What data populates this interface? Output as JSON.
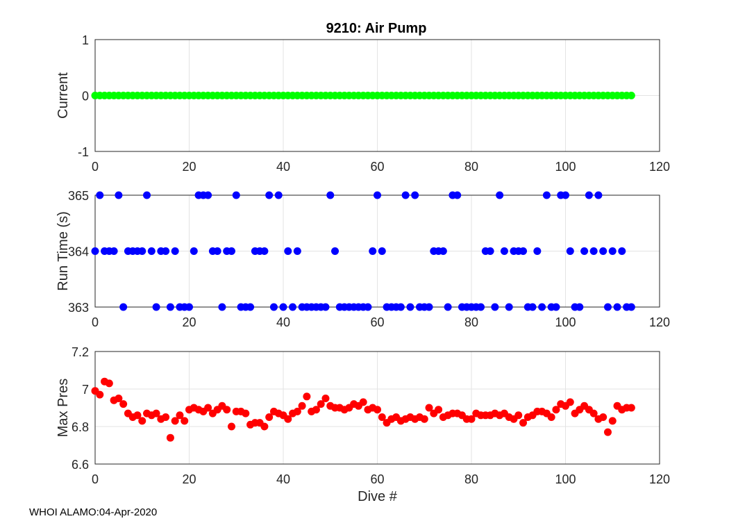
{
  "title": "9210: Air Pump",
  "footer": "WHOI ALAMO:04-Apr-2020",
  "chart_data": [
    {
      "type": "scatter",
      "title": "9210: Air Pump",
      "ylabel": "Current",
      "xlabel": "",
      "xlim": [
        0,
        120
      ],
      "ylim": [
        -1,
        1
      ],
      "xticks": [
        0,
        20,
        40,
        60,
        80,
        100,
        120
      ],
      "yticks": [
        -1,
        0,
        1
      ],
      "grid": true,
      "color": "#00ff00",
      "x": [
        0,
        1,
        2,
        3,
        4,
        5,
        6,
        7,
        8,
        9,
        10,
        11,
        12,
        13,
        14,
        15,
        16,
        17,
        18,
        19,
        20,
        21,
        22,
        23,
        24,
        25,
        26,
        27,
        28,
        29,
        30,
        31,
        32,
        33,
        34,
        35,
        36,
        37,
        38,
        39,
        40,
        41,
        42,
        43,
        44,
        45,
        46,
        47,
        48,
        49,
        50,
        51,
        52,
        53,
        54,
        55,
        56,
        57,
        58,
        59,
        60,
        61,
        62,
        63,
        64,
        65,
        66,
        67,
        68,
        69,
        70,
        71,
        72,
        73,
        74,
        75,
        76,
        77,
        78,
        79,
        80,
        81,
        82,
        83,
        84,
        85,
        86,
        87,
        88,
        89,
        90,
        91,
        92,
        93,
        94,
        95,
        96,
        97,
        98,
        99,
        100,
        101,
        102,
        103,
        104,
        105,
        106,
        107,
        108,
        109,
        110,
        111,
        112,
        113,
        114
      ],
      "y": [
        0,
        0,
        0,
        0,
        0,
        0,
        0,
        0,
        0,
        0,
        0,
        0,
        0,
        0,
        0,
        0,
        0,
        0,
        0,
        0,
        0,
        0,
        0,
        0,
        0,
        0,
        0,
        0,
        0,
        0,
        0,
        0,
        0,
        0,
        0,
        0,
        0,
        0,
        0,
        0,
        0,
        0,
        0,
        0,
        0,
        0,
        0,
        0,
        0,
        0,
        0,
        0,
        0,
        0,
        0,
        0,
        0,
        0,
        0,
        0,
        0,
        0,
        0,
        0,
        0,
        0,
        0,
        0,
        0,
        0,
        0,
        0,
        0,
        0,
        0,
        0,
        0,
        0,
        0,
        0,
        0,
        0,
        0,
        0,
        0,
        0,
        0,
        0,
        0,
        0,
        0,
        0,
        0,
        0,
        0,
        0,
        0,
        0,
        0,
        0,
        0,
        0,
        0,
        0,
        0,
        0,
        0,
        0,
        0,
        0,
        0,
        0,
        0,
        0,
        0
      ]
    },
    {
      "type": "scatter",
      "title": "",
      "ylabel": "Run Time (s)",
      "xlabel": "",
      "xlim": [
        0,
        120
      ],
      "ylim": [
        363,
        365
      ],
      "xticks": [
        0,
        20,
        40,
        60,
        80,
        100,
        120
      ],
      "yticks": [
        363,
        364,
        365
      ],
      "grid": true,
      "color": "#0000ff",
      "x": [
        0,
        1,
        2,
        3,
        4,
        5,
        6,
        7,
        8,
        9,
        10,
        11,
        12,
        13,
        14,
        15,
        16,
        17,
        18,
        19,
        20,
        21,
        22,
        23,
        24,
        25,
        26,
        27,
        28,
        29,
        30,
        31,
        32,
        33,
        34,
        35,
        36,
        37,
        38,
        39,
        40,
        41,
        42,
        43,
        44,
        45,
        46,
        47,
        48,
        49,
        50,
        51,
        52,
        53,
        54,
        55,
        56,
        57,
        58,
        59,
        60,
        61,
        62,
        63,
        64,
        65,
        66,
        67,
        68,
        69,
        70,
        71,
        72,
        73,
        74,
        75,
        76,
        77,
        78,
        79,
        80,
        81,
        82,
        83,
        84,
        85,
        86,
        87,
        88,
        89,
        90,
        91,
        92,
        93,
        94,
        95,
        96,
        97,
        98,
        99,
        100,
        101,
        102,
        103,
        104,
        105,
        106,
        107,
        108,
        109,
        110,
        111,
        112,
        113,
        114
      ],
      "y": [
        364,
        365,
        364,
        364,
        364,
        365,
        363,
        364,
        364,
        364,
        364,
        365,
        364,
        363,
        364,
        364,
        363,
        364,
        363,
        363,
        363,
        364,
        365,
        365,
        365,
        364,
        364,
        363,
        364,
        364,
        365,
        363,
        363,
        363,
        364,
        364,
        364,
        365,
        363,
        365,
        363,
        364,
        363,
        364,
        363,
        363,
        363,
        363,
        363,
        363,
        365,
        364,
        363,
        363,
        363,
        363,
        363,
        363,
        363,
        364,
        365,
        364,
        363,
        363,
        363,
        363,
        365,
        363,
        365,
        363,
        363,
        363,
        364,
        364,
        364,
        363,
        365,
        365,
        363,
        363,
        363,
        363,
        363,
        364,
        364,
        363,
        365,
        364,
        363,
        364,
        364,
        364,
        363,
        363,
        364,
        363,
        365,
        363,
        363,
        365,
        365,
        364,
        363,
        363,
        364,
        365,
        364,
        365,
        364,
        363,
        364,
        363,
        364,
        363,
        363
      ]
    },
    {
      "type": "scatter",
      "title": "",
      "ylabel": "Max Pres",
      "xlabel": "Dive #",
      "xlim": [
        0,
        120
      ],
      "ylim": [
        6.6,
        7.2
      ],
      "xticks": [
        0,
        20,
        40,
        60,
        80,
        100,
        120
      ],
      "yticks": [
        6.6,
        6.8,
        7,
        7.2
      ],
      "ytick_labels": [
        "6.6",
        "6.8",
        "7",
        "7.2"
      ],
      "grid": true,
      "color": "#ff0000",
      "x": [
        0,
        1,
        2,
        3,
        4,
        5,
        6,
        7,
        8,
        9,
        10,
        11,
        12,
        13,
        14,
        15,
        16,
        17,
        18,
        19,
        20,
        21,
        22,
        23,
        24,
        25,
        26,
        27,
        28,
        29,
        30,
        31,
        32,
        33,
        34,
        35,
        36,
        37,
        38,
        39,
        40,
        41,
        42,
        43,
        44,
        45,
        46,
        47,
        48,
        49,
        50,
        51,
        52,
        53,
        54,
        55,
        56,
        57,
        58,
        59,
        60,
        61,
        62,
        63,
        64,
        65,
        66,
        67,
        68,
        69,
        70,
        71,
        72,
        73,
        74,
        75,
        76,
        77,
        78,
        79,
        80,
        81,
        82,
        83,
        84,
        85,
        86,
        87,
        88,
        89,
        90,
        91,
        92,
        93,
        94,
        95,
        96,
        97,
        98,
        99,
        100,
        101,
        102,
        103,
        104,
        105,
        106,
        107,
        108,
        109,
        110,
        111,
        112,
        113,
        114
      ],
      "y": [
        6.99,
        6.97,
        7.04,
        7.03,
        6.94,
        6.95,
        6.92,
        6.87,
        6.85,
        6.86,
        6.83,
        6.87,
        6.86,
        6.87,
        6.84,
        6.85,
        6.74,
        6.83,
        6.86,
        6.83,
        6.89,
        6.9,
        6.89,
        6.88,
        6.9,
        6.87,
        6.89,
        6.91,
        6.89,
        6.8,
        6.88,
        6.88,
        6.87,
        6.81,
        6.82,
        6.82,
        6.8,
        6.85,
        6.88,
        6.87,
        6.86,
        6.84,
        6.87,
        6.88,
        6.91,
        6.96,
        6.88,
        6.89,
        6.92,
        6.95,
        6.91,
        6.9,
        6.9,
        6.89,
        6.9,
        6.92,
        6.91,
        6.93,
        6.89,
        6.9,
        6.89,
        6.85,
        6.82,
        6.84,
        6.85,
        6.83,
        6.84,
        6.85,
        6.84,
        6.85,
        6.84,
        6.9,
        6.87,
        6.89,
        6.85,
        6.86,
        6.87,
        6.87,
        6.86,
        6.84,
        6.84,
        6.87,
        6.86,
        6.86,
        6.86,
        6.87,
        6.86,
        6.87,
        6.85,
        6.84,
        6.86,
        6.82,
        6.85,
        6.86,
        6.88,
        6.88,
        6.87,
        6.85,
        6.89,
        6.92,
        6.91,
        6.93,
        6.87,
        6.89,
        6.91,
        6.89,
        6.87,
        6.84,
        6.85,
        6.77,
        6.83,
        6.91,
        6.89,
        6.9,
        6.9
      ]
    }
  ]
}
